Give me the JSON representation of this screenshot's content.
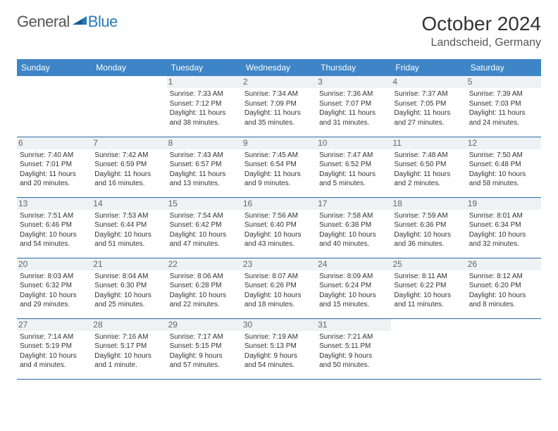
{
  "logo": {
    "general": "General",
    "blue": "Blue"
  },
  "title": "October 2024",
  "location": "Landscheid, Germany",
  "colors": {
    "header_bg": "#3d85c6",
    "header_text": "#ffffff",
    "row_border": "#2a6aa3",
    "daynum_bg": "#eef2f5",
    "logo_blue": "#2a7ab9"
  },
  "day_headers": [
    "Sunday",
    "Monday",
    "Tuesday",
    "Wednesday",
    "Thursday",
    "Friday",
    "Saturday"
  ],
  "weeks": [
    [
      null,
      null,
      {
        "n": "1",
        "sr": "Sunrise: 7:33 AM",
        "ss": "Sunset: 7:12 PM",
        "dl1": "Daylight: 11 hours",
        "dl2": "and 38 minutes."
      },
      {
        "n": "2",
        "sr": "Sunrise: 7:34 AM",
        "ss": "Sunset: 7:09 PM",
        "dl1": "Daylight: 11 hours",
        "dl2": "and 35 minutes."
      },
      {
        "n": "3",
        "sr": "Sunrise: 7:36 AM",
        "ss": "Sunset: 7:07 PM",
        "dl1": "Daylight: 11 hours",
        "dl2": "and 31 minutes."
      },
      {
        "n": "4",
        "sr": "Sunrise: 7:37 AM",
        "ss": "Sunset: 7:05 PM",
        "dl1": "Daylight: 11 hours",
        "dl2": "and 27 minutes."
      },
      {
        "n": "5",
        "sr": "Sunrise: 7:39 AM",
        "ss": "Sunset: 7:03 PM",
        "dl1": "Daylight: 11 hours",
        "dl2": "and 24 minutes."
      }
    ],
    [
      {
        "n": "6",
        "sr": "Sunrise: 7:40 AM",
        "ss": "Sunset: 7:01 PM",
        "dl1": "Daylight: 11 hours",
        "dl2": "and 20 minutes."
      },
      {
        "n": "7",
        "sr": "Sunrise: 7:42 AM",
        "ss": "Sunset: 6:59 PM",
        "dl1": "Daylight: 11 hours",
        "dl2": "and 16 minutes."
      },
      {
        "n": "8",
        "sr": "Sunrise: 7:43 AM",
        "ss": "Sunset: 6:57 PM",
        "dl1": "Daylight: 11 hours",
        "dl2": "and 13 minutes."
      },
      {
        "n": "9",
        "sr": "Sunrise: 7:45 AM",
        "ss": "Sunset: 6:54 PM",
        "dl1": "Daylight: 11 hours",
        "dl2": "and 9 minutes."
      },
      {
        "n": "10",
        "sr": "Sunrise: 7:47 AM",
        "ss": "Sunset: 6:52 PM",
        "dl1": "Daylight: 11 hours",
        "dl2": "and 5 minutes."
      },
      {
        "n": "11",
        "sr": "Sunrise: 7:48 AM",
        "ss": "Sunset: 6:50 PM",
        "dl1": "Daylight: 11 hours",
        "dl2": "and 2 minutes."
      },
      {
        "n": "12",
        "sr": "Sunrise: 7:50 AM",
        "ss": "Sunset: 6:48 PM",
        "dl1": "Daylight: 10 hours",
        "dl2": "and 58 minutes."
      }
    ],
    [
      {
        "n": "13",
        "sr": "Sunrise: 7:51 AM",
        "ss": "Sunset: 6:46 PM",
        "dl1": "Daylight: 10 hours",
        "dl2": "and 54 minutes."
      },
      {
        "n": "14",
        "sr": "Sunrise: 7:53 AM",
        "ss": "Sunset: 6:44 PM",
        "dl1": "Daylight: 10 hours",
        "dl2": "and 51 minutes."
      },
      {
        "n": "15",
        "sr": "Sunrise: 7:54 AM",
        "ss": "Sunset: 6:42 PM",
        "dl1": "Daylight: 10 hours",
        "dl2": "and 47 minutes."
      },
      {
        "n": "16",
        "sr": "Sunrise: 7:56 AM",
        "ss": "Sunset: 6:40 PM",
        "dl1": "Daylight: 10 hours",
        "dl2": "and 43 minutes."
      },
      {
        "n": "17",
        "sr": "Sunrise: 7:58 AM",
        "ss": "Sunset: 6:38 PM",
        "dl1": "Daylight: 10 hours",
        "dl2": "and 40 minutes."
      },
      {
        "n": "18",
        "sr": "Sunrise: 7:59 AM",
        "ss": "Sunset: 6:36 PM",
        "dl1": "Daylight: 10 hours",
        "dl2": "and 36 minutes."
      },
      {
        "n": "19",
        "sr": "Sunrise: 8:01 AM",
        "ss": "Sunset: 6:34 PM",
        "dl1": "Daylight: 10 hours",
        "dl2": "and 32 minutes."
      }
    ],
    [
      {
        "n": "20",
        "sr": "Sunrise: 8:03 AM",
        "ss": "Sunset: 6:32 PM",
        "dl1": "Daylight: 10 hours",
        "dl2": "and 29 minutes."
      },
      {
        "n": "21",
        "sr": "Sunrise: 8:04 AM",
        "ss": "Sunset: 6:30 PM",
        "dl1": "Daylight: 10 hours",
        "dl2": "and 25 minutes."
      },
      {
        "n": "22",
        "sr": "Sunrise: 8:06 AM",
        "ss": "Sunset: 6:28 PM",
        "dl1": "Daylight: 10 hours",
        "dl2": "and 22 minutes."
      },
      {
        "n": "23",
        "sr": "Sunrise: 8:07 AM",
        "ss": "Sunset: 6:26 PM",
        "dl1": "Daylight: 10 hours",
        "dl2": "and 18 minutes."
      },
      {
        "n": "24",
        "sr": "Sunrise: 8:09 AM",
        "ss": "Sunset: 6:24 PM",
        "dl1": "Daylight: 10 hours",
        "dl2": "and 15 minutes."
      },
      {
        "n": "25",
        "sr": "Sunrise: 8:11 AM",
        "ss": "Sunset: 6:22 PM",
        "dl1": "Daylight: 10 hours",
        "dl2": "and 11 minutes."
      },
      {
        "n": "26",
        "sr": "Sunrise: 8:12 AM",
        "ss": "Sunset: 6:20 PM",
        "dl1": "Daylight: 10 hours",
        "dl2": "and 8 minutes."
      }
    ],
    [
      {
        "n": "27",
        "sr": "Sunrise: 7:14 AM",
        "ss": "Sunset: 5:19 PM",
        "dl1": "Daylight: 10 hours",
        "dl2": "and 4 minutes."
      },
      {
        "n": "28",
        "sr": "Sunrise: 7:16 AM",
        "ss": "Sunset: 5:17 PM",
        "dl1": "Daylight: 10 hours",
        "dl2": "and 1 minute."
      },
      {
        "n": "29",
        "sr": "Sunrise: 7:17 AM",
        "ss": "Sunset: 5:15 PM",
        "dl1": "Daylight: 9 hours",
        "dl2": "and 57 minutes."
      },
      {
        "n": "30",
        "sr": "Sunrise: 7:19 AM",
        "ss": "Sunset: 5:13 PM",
        "dl1": "Daylight: 9 hours",
        "dl2": "and 54 minutes."
      },
      {
        "n": "31",
        "sr": "Sunrise: 7:21 AM",
        "ss": "Sunset: 5:11 PM",
        "dl1": "Daylight: 9 hours",
        "dl2": "and 50 minutes."
      },
      null,
      null
    ]
  ]
}
